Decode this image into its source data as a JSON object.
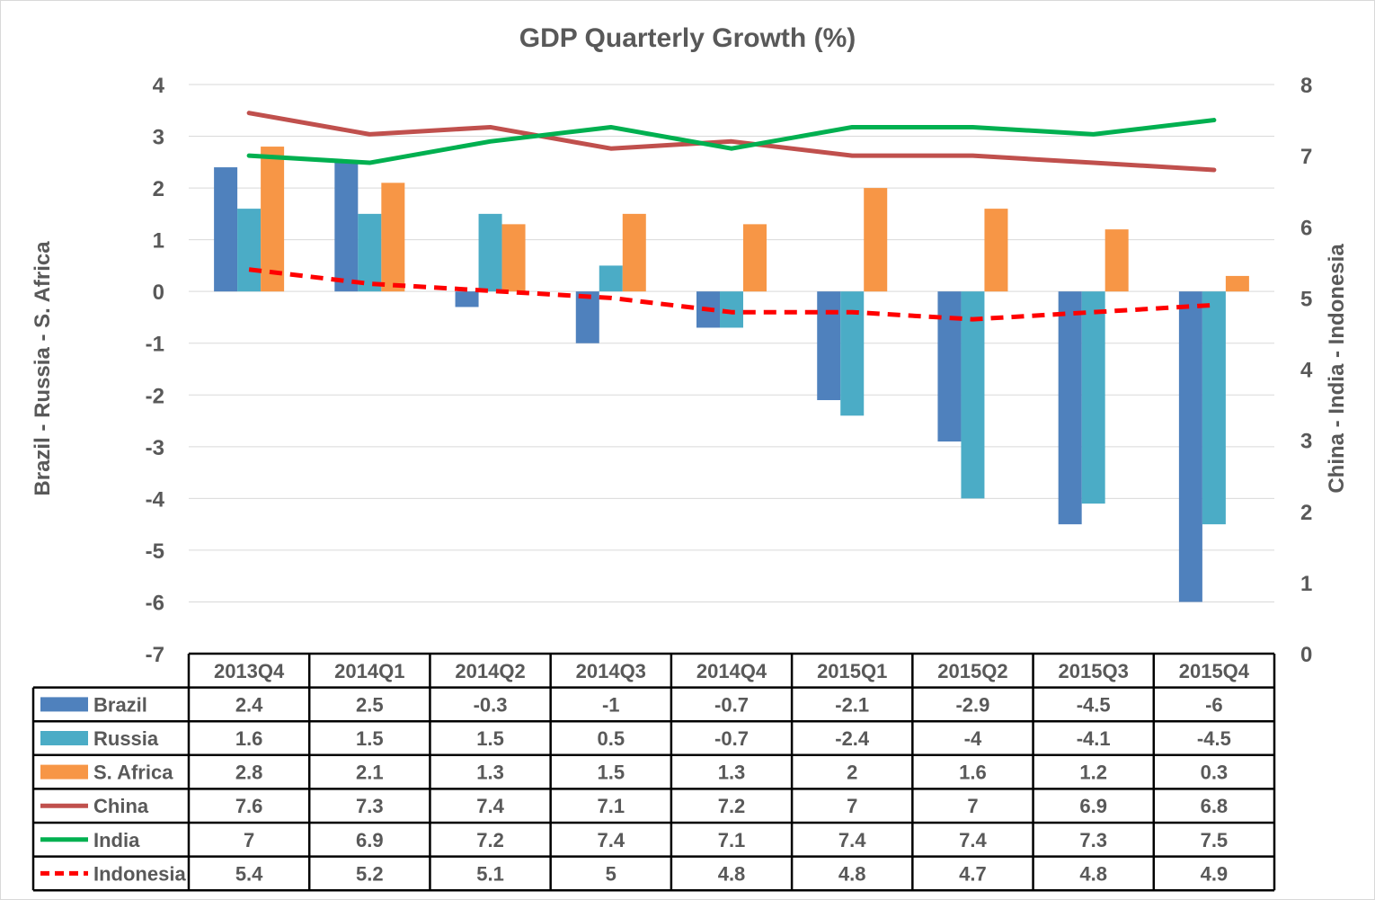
{
  "chart_data": {
    "type": "bar",
    "title": "GDP Quarterly Growth (%)",
    "ylabel_left": "Brazil - Russia - S. Africa",
    "ylabel_right": "China - India - Indonesia",
    "categories": [
      "2013Q4",
      "2014Q1",
      "2014Q2",
      "2014Q3",
      "2014Q4",
      "2015Q1",
      "2015Q2",
      "2015Q3",
      "2015Q4"
    ],
    "ylim_left": [
      -7,
      4
    ],
    "ylim_right": [
      0,
      8
    ],
    "yticks_left": [
      4,
      3,
      2,
      1,
      0,
      -1,
      -2,
      -3,
      -4,
      -5,
      -6,
      -7
    ],
    "yticks_right": [
      8,
      7,
      6,
      5,
      4,
      3,
      2,
      1,
      0
    ],
    "grid": true,
    "legend": "data table below chart",
    "series": [
      {
        "name": "Brazil",
        "kind": "bar",
        "axis": "left",
        "color": "#4f81bd",
        "values": [
          2.4,
          2.5,
          -0.3,
          -1,
          -0.7,
          -2.1,
          -2.9,
          -4.5,
          -6
        ]
      },
      {
        "name": "Russia",
        "kind": "bar",
        "axis": "left",
        "color": "#4bacc6",
        "values": [
          1.6,
          1.5,
          1.5,
          0.5,
          -0.7,
          -2.4,
          -4,
          -4.1,
          -4.5
        ]
      },
      {
        "name": "S. Africa",
        "kind": "bar",
        "axis": "left",
        "color": "#f79646",
        "values": [
          2.8,
          2.1,
          1.3,
          1.5,
          1.3,
          2,
          1.6,
          1.2,
          0.3
        ]
      },
      {
        "name": "China",
        "kind": "line",
        "axis": "right",
        "color": "#c0504d",
        "dash": false,
        "values": [
          7.6,
          7.3,
          7.4,
          7.1,
          7.2,
          7,
          7,
          6.9,
          6.8
        ]
      },
      {
        "name": "India",
        "kind": "line",
        "axis": "right",
        "color": "#00b050",
        "dash": false,
        "values": [
          7,
          6.9,
          7.2,
          7.4,
          7.1,
          7.4,
          7.4,
          7.3,
          7.5
        ]
      },
      {
        "name": "Indonesia",
        "kind": "line",
        "axis": "right",
        "color": "#ff0000",
        "dash": true,
        "values": [
          5.4,
          5.2,
          5.1,
          5,
          4.8,
          4.8,
          4.7,
          4.8,
          4.9
        ]
      }
    ],
    "table_values": [
      [
        "2.4",
        "2.5",
        "-0.3",
        "-1",
        "-0.7",
        "-2.1",
        "-2.9",
        "-4.5",
        "-6"
      ],
      [
        "1.6",
        "1.5",
        "1.5",
        "0.5",
        "-0.7",
        "-2.4",
        "-4",
        "-4.1",
        "-4.5"
      ],
      [
        "2.8",
        "2.1",
        "1.3",
        "1.5",
        "1.3",
        "2",
        "1.6",
        "1.2",
        "0.3"
      ],
      [
        "7.6",
        "7.3",
        "7.4",
        "7.1",
        "7.2",
        "7",
        "7",
        "6.9",
        "6.8"
      ],
      [
        "7",
        "6.9",
        "7.2",
        "7.4",
        "7.1",
        "7.4",
        "7.4",
        "7.3",
        "7.5"
      ],
      [
        "5.4",
        "5.2",
        "5.1",
        "5",
        "4.8",
        "4.8",
        "4.7",
        "4.8",
        "4.9"
      ]
    ]
  }
}
